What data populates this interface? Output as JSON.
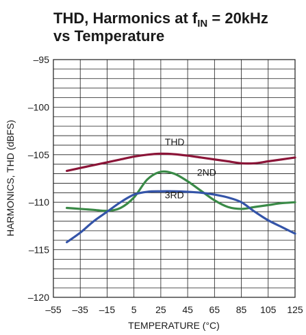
{
  "chart_data": {
    "type": "line",
    "title": {
      "line1_main": "THD, Harmonics at f",
      "line1_sub": "IN",
      "line1_tail": " = 20kHz",
      "line2": "vs Temperature"
    },
    "xlabel": "TEMPERATURE (°C)",
    "ylabel": "HARMONICS, THD (dBFS)",
    "xlim": [
      -55,
      125
    ],
    "ylim": [
      -120,
      -95
    ],
    "x_ticks": [
      -55,
      -35,
      -15,
      5,
      25,
      45,
      65,
      85,
      105,
      125
    ],
    "x_tick_labels": [
      "–55",
      "–35",
      "–15",
      "5",
      "25",
      "45",
      "65",
      "85",
      "105",
      "125"
    ],
    "y_ticks": [
      -95,
      -100,
      -105,
      -110,
      -115,
      -120
    ],
    "y_tick_labels": [
      "–95",
      "–100",
      "–105",
      "–110",
      "–115",
      "–120"
    ],
    "grid": true,
    "series": [
      {
        "name": "THD",
        "color": "#8b1538",
        "x": [
          -45,
          -35,
          -25,
          -15,
          -5,
          5,
          15,
          25,
          35,
          45,
          55,
          65,
          75,
          85,
          95,
          105,
          115,
          125
        ],
        "y": [
          -106.7,
          -106.4,
          -106.1,
          -105.8,
          -105.5,
          -105.2,
          -105.0,
          -104.9,
          -104.95,
          -105.1,
          -105.3,
          -105.5,
          -105.7,
          -105.9,
          -105.9,
          -105.7,
          -105.5,
          -105.3
        ]
      },
      {
        "name": "2ND",
        "color": "#3a8a47",
        "x": [
          -45,
          -35,
          -25,
          -15,
          -5,
          5,
          15,
          25,
          35,
          45,
          55,
          65,
          75,
          85,
          95,
          105,
          115,
          125
        ],
        "y": [
          -110.6,
          -110.7,
          -110.8,
          -110.9,
          -110.6,
          -109.5,
          -107.6,
          -106.8,
          -107.0,
          -107.8,
          -108.8,
          -109.8,
          -110.5,
          -110.7,
          -110.5,
          -110.3,
          -110.1,
          -110.0
        ]
      },
      {
        "name": "3RD",
        "color": "#3454a8",
        "x": [
          -45,
          -35,
          -25,
          -15,
          -5,
          5,
          15,
          25,
          35,
          45,
          55,
          65,
          75,
          85,
          95,
          105,
          115,
          125
        ],
        "y": [
          -114.2,
          -113.2,
          -112.0,
          -111.0,
          -110.0,
          -109.2,
          -108.9,
          -108.85,
          -108.85,
          -108.9,
          -109.0,
          -109.2,
          -109.5,
          -110.0,
          -111.0,
          -111.9,
          -112.6,
          -113.3
        ]
      }
    ],
    "annotations": [
      {
        "text": "THD",
        "x": 28,
        "y": -104.0
      },
      {
        "text": "2ND",
        "x": 52,
        "y": -107.2
      },
      {
        "text": "3RD",
        "x": 28,
        "y": -109.6
      }
    ]
  }
}
